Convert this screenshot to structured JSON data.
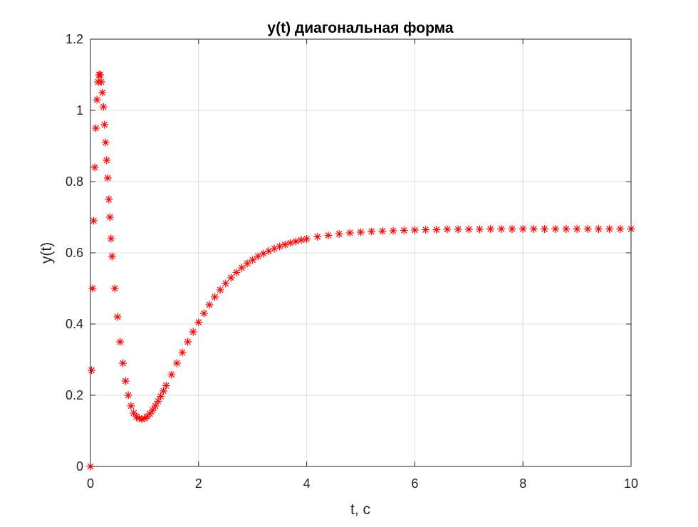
{
  "chart_data": {
    "type": "scatter",
    "title": "y(t) диагональная форма",
    "xlabel": "t, c",
    "ylabel": "y(t)",
    "xlim": [
      0,
      10
    ],
    "ylim": [
      0,
      1.2
    ],
    "xticks": [
      0,
      2,
      4,
      6,
      8,
      10
    ],
    "yticks": [
      0,
      0.2,
      0.4,
      0.6,
      0.8,
      1,
      1.2
    ],
    "xtick_labels": [
      "0",
      "2",
      "4",
      "6",
      "8",
      "10"
    ],
    "ytick_labels": [
      "0",
      "0.2",
      "0.4",
      "0.6",
      "0.8",
      "1",
      "1.2"
    ],
    "grid": true,
    "marker": "asterisk",
    "colors": {
      "series": "#ff0000",
      "grid": "#dcdcdc",
      "axes": "#262626"
    },
    "series": [
      {
        "x": [
          0,
          0.02,
          0.04,
          0.06,
          0.08,
          0.1,
          0.12,
          0.14,
          0.16,
          0.18,
          0.2,
          0.22,
          0.24,
          0.26,
          0.28,
          0.3,
          0.32,
          0.34,
          0.36,
          0.38,
          0.4,
          0.45,
          0.5,
          0.55,
          0.6,
          0.65,
          0.7,
          0.75,
          0.8,
          0.85,
          0.9,
          0.95,
          1.0,
          1.05,
          1.1,
          1.15,
          1.2,
          1.25,
          1.3,
          1.35,
          1.4,
          1.5,
          1.6,
          1.7,
          1.8,
          1.9,
          2.0,
          2.1,
          2.2,
          2.3,
          2.4,
          2.5,
          2.6,
          2.7,
          2.8,
          2.9,
          3.0,
          3.1,
          3.2,
          3.3,
          3.4,
          3.5,
          3.6,
          3.7,
          3.8,
          3.9,
          4.0,
          4.2,
          4.4,
          4.6,
          4.8,
          5.0,
          5.2,
          5.4,
          5.6,
          5.8,
          6.0,
          6.2,
          6.4,
          6.6,
          6.8,
          7.0,
          7.2,
          7.4,
          7.6,
          7.8,
          8.0,
          8.2,
          8.4,
          8.6,
          8.8,
          9.0,
          9.2,
          9.4,
          9.6,
          9.8,
          10.0
        ],
        "y": [
          0.0,
          0.27,
          0.5,
          0.69,
          0.84,
          0.95,
          1.03,
          1.08,
          1.1,
          1.1,
          1.08,
          1.05,
          1.01,
          0.96,
          0.91,
          0.86,
          0.81,
          0.75,
          0.7,
          0.64,
          0.59,
          0.5,
          0.42,
          0.35,
          0.29,
          0.24,
          0.2,
          0.17,
          0.15,
          0.14,
          0.135,
          0.133,
          0.135,
          0.14,
          0.148,
          0.158,
          0.17,
          0.183,
          0.197,
          0.212,
          0.227,
          0.258,
          0.29,
          0.32,
          0.35,
          0.378,
          0.405,
          0.43,
          0.454,
          0.476,
          0.496,
          0.514,
          0.53,
          0.545,
          0.558,
          0.57,
          0.58,
          0.59,
          0.598,
          0.605,
          0.612,
          0.618,
          0.623,
          0.628,
          0.632,
          0.636,
          0.639,
          0.645,
          0.649,
          0.653,
          0.656,
          0.658,
          0.66,
          0.661,
          0.662,
          0.663,
          0.664,
          0.665,
          0.665,
          0.666,
          0.666,
          0.666,
          0.666,
          0.667,
          0.667,
          0.667,
          0.667,
          0.667,
          0.667,
          0.667,
          0.667,
          0.667,
          0.667,
          0.667,
          0.667,
          0.667,
          0.667
        ]
      }
    ]
  }
}
